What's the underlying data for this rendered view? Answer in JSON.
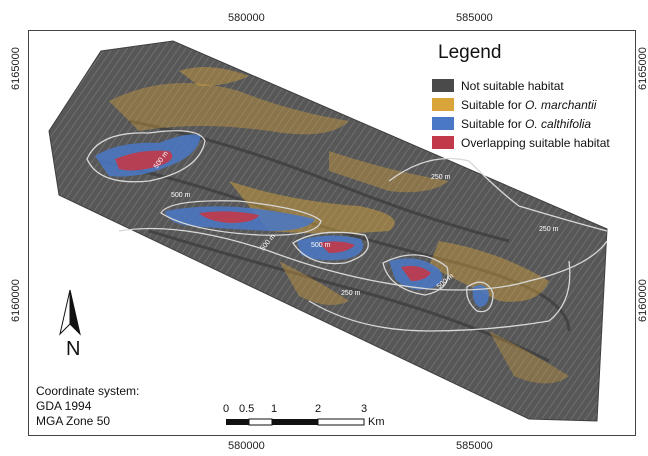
{
  "axes": {
    "x_top": [
      "580000",
      "585000"
    ],
    "x_bottom": [
      "580000",
      "585000"
    ],
    "y_left": [
      "6165000",
      "6160000"
    ],
    "y_right": [
      "6165000",
      "6160000"
    ]
  },
  "legend": {
    "title": "Legend",
    "items": [
      {
        "label_plain": "Not suitable habitat",
        "color": "#4a4a4a"
      },
      {
        "label_prefix": "Suitable for ",
        "label_italic": "O. marchantii",
        "color": "#d9a53b"
      },
      {
        "label_prefix": "Suitable for ",
        "label_italic": "O. calthifolia",
        "color": "#4a78c6"
      },
      {
        "label_plain": "Overlapping suitable habitat",
        "color": "#c23a4a"
      }
    ]
  },
  "contours": [
    "250 m",
    "250 m",
    "250 m",
    "500 m",
    "500 m",
    "500 m",
    "500 m",
    "500 m"
  ],
  "coordinate_system": [
    "Coordinate system:",
    "GDA 1994",
    "MGA Zone 50"
  ],
  "scale_bar": {
    "ticks": [
      "0",
      "0.5",
      "1",
      "2",
      "3"
    ],
    "unit": "Km"
  },
  "north_arrow": {
    "label": "N"
  },
  "colors": {
    "terrain": "#5a5a5a",
    "frame": "#444444",
    "contour": "#d8d8d8"
  }
}
